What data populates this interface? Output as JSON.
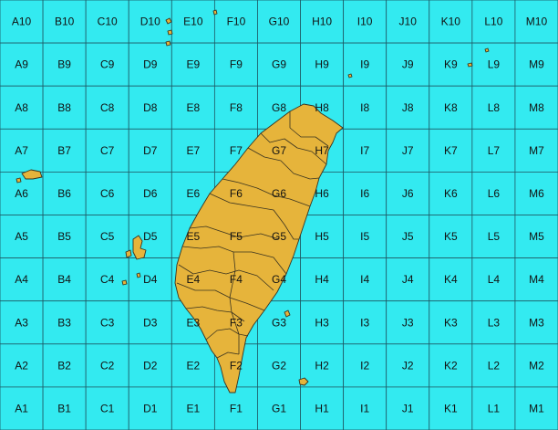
{
  "grid": {
    "columns": [
      "A",
      "B",
      "C",
      "D",
      "E",
      "F",
      "G",
      "H",
      "I",
      "J",
      "K",
      "L",
      "M"
    ],
    "rows": [
      "10",
      "9",
      "8",
      "7",
      "6",
      "5",
      "4",
      "3",
      "2",
      "1"
    ]
  },
  "colors": {
    "sea": "#33eaf0",
    "land": "#e6b43b",
    "grid_line": "#1e5a66",
    "label": "#111111"
  },
  "features": [
    "main-island",
    "penghu-islands",
    "green-island",
    "orchid-island",
    "kinmen",
    "matsu"
  ]
}
